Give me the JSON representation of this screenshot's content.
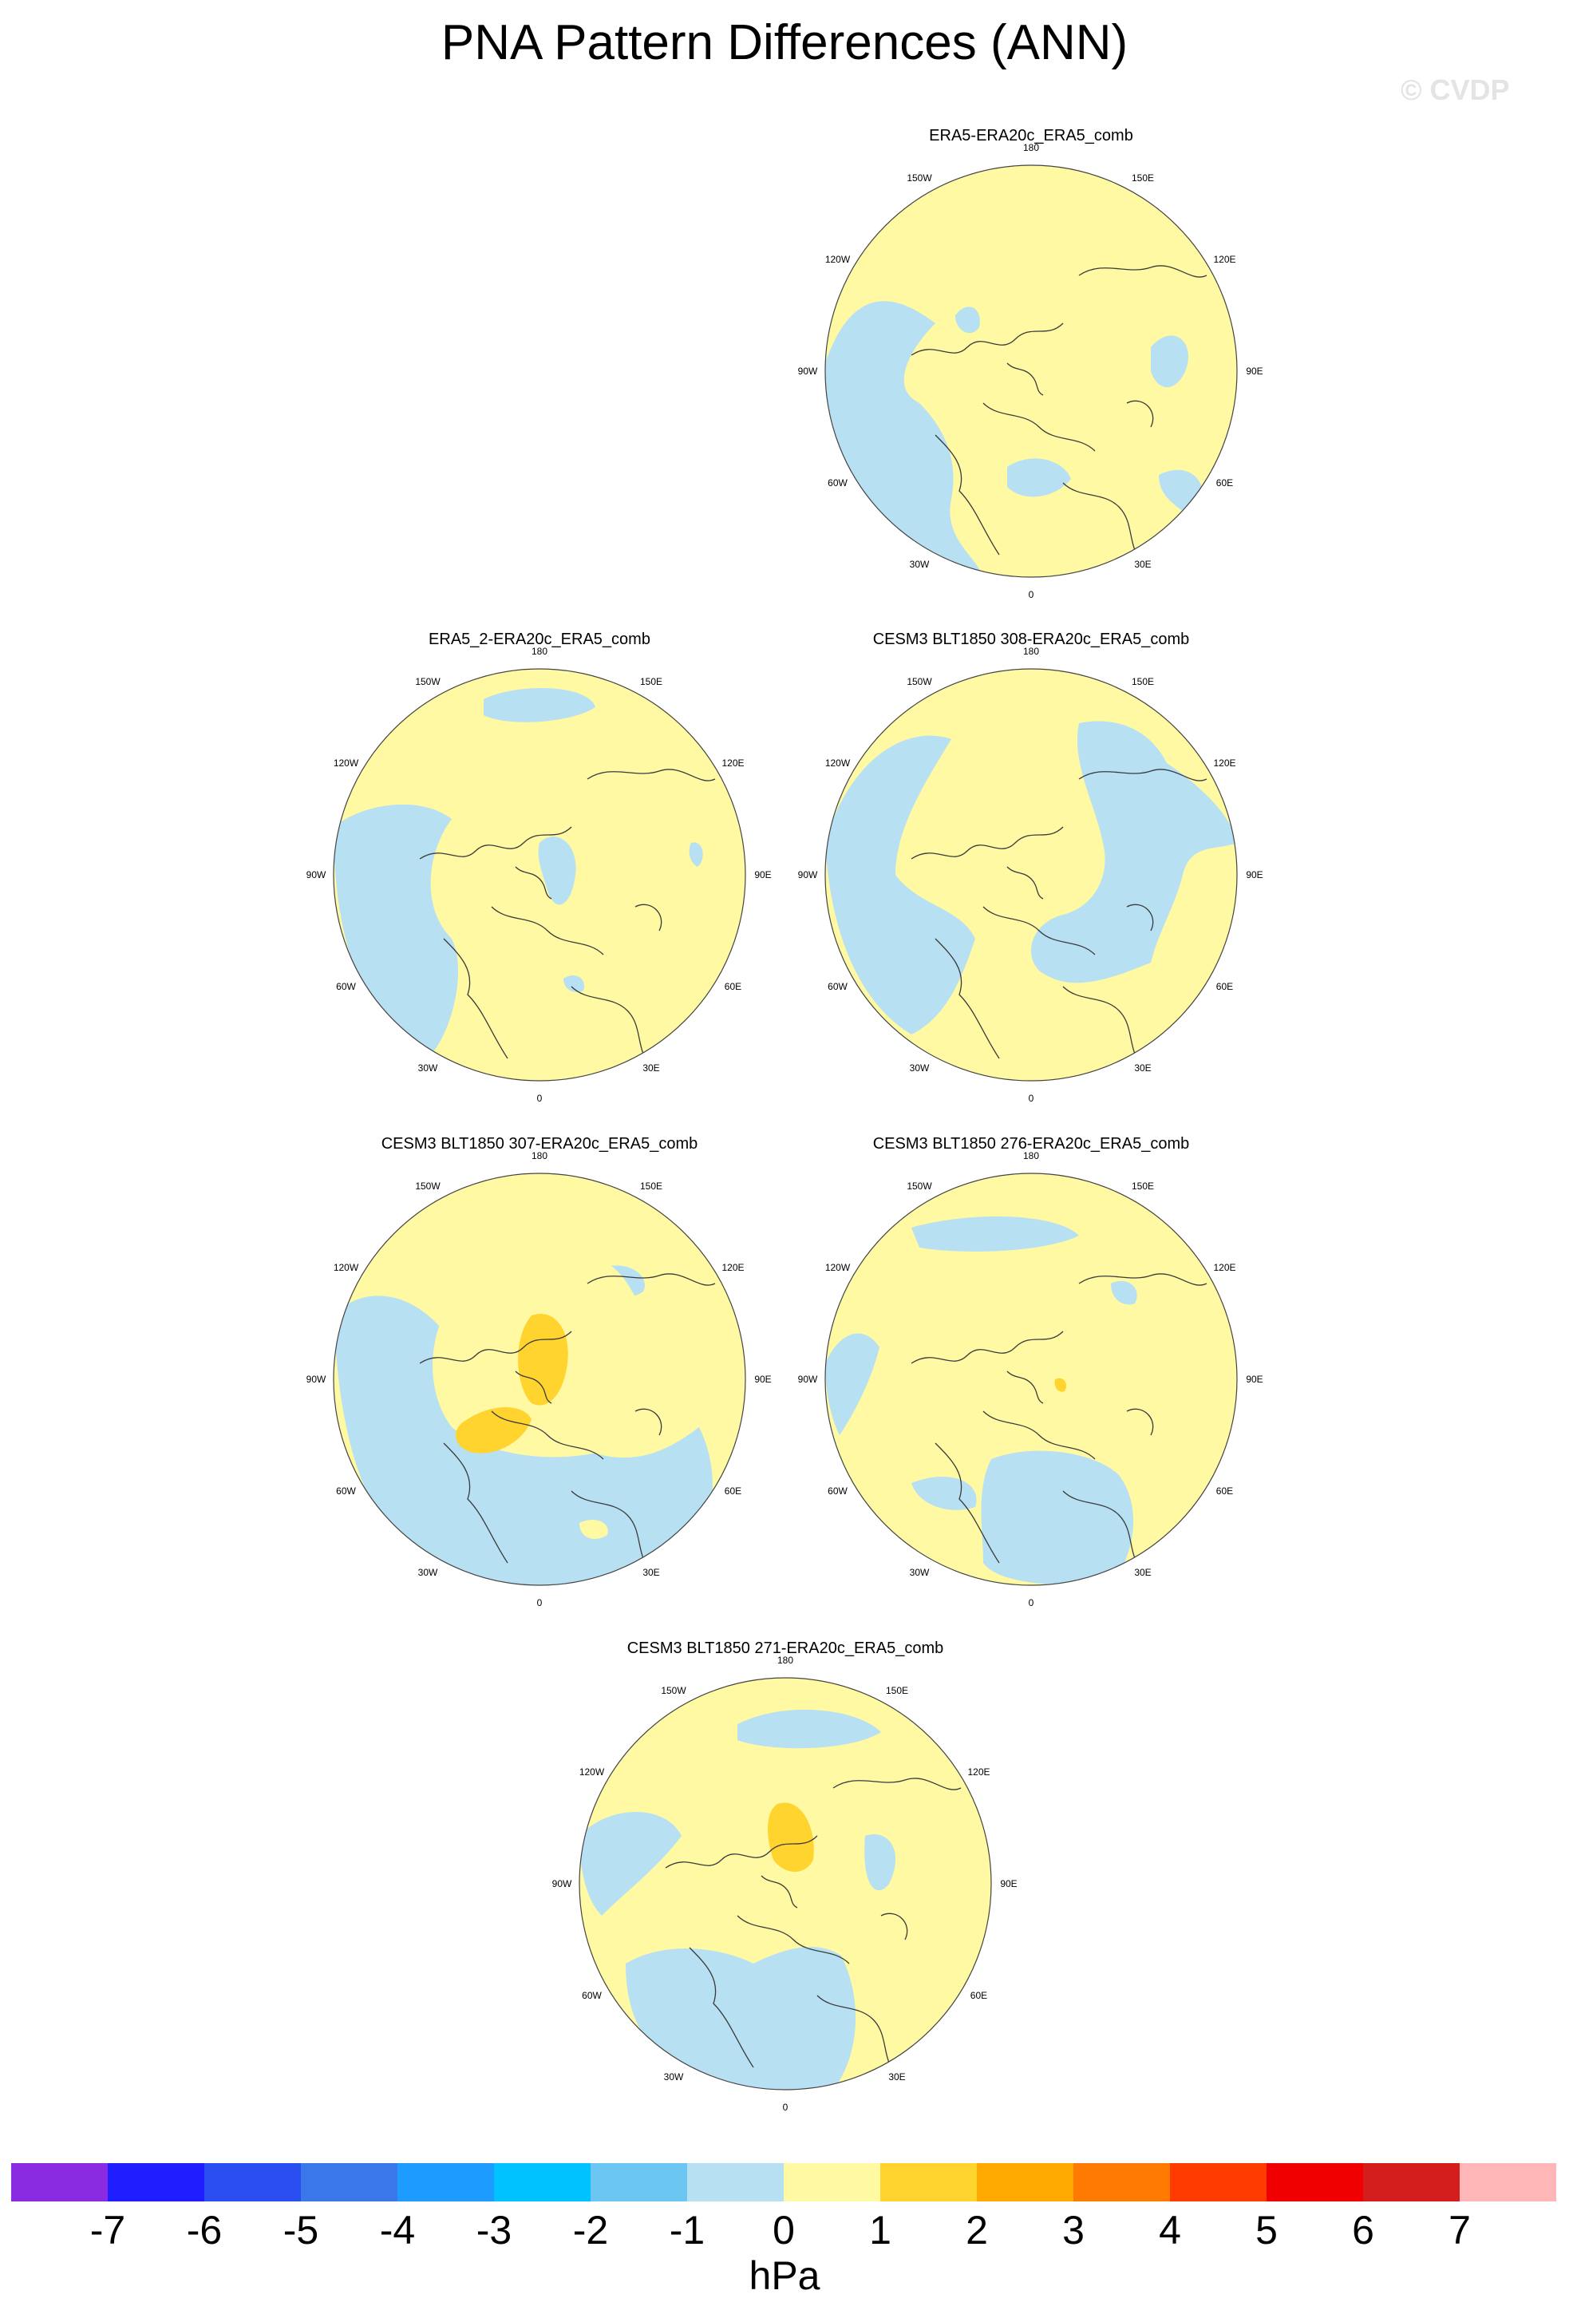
{
  "title": "PNA Pattern Differences (ANN)",
  "watermark": "© CVDP",
  "units": "hPa",
  "colors": {
    "land_outline": "#3a3a3a",
    "zero_to_one": "#fff9a3",
    "minus_one_to_zero": "#b7e0f3",
    "one_to_two": "#ffd42e"
  },
  "longitude_labels": [
    "180",
    "150E",
    "120E",
    "90E",
    "60E",
    "30E",
    "0",
    "30W",
    "60W",
    "90W",
    "120W",
    "150W"
  ],
  "panels": [
    {
      "id": "era5",
      "title": "ERA5-ERA20c_ERA5_comb",
      "pos": "row1-right"
    },
    {
      "id": "era5-2",
      "title": "ERA5_2-ERA20c_ERA5_comb",
      "pos": "row2-left"
    },
    {
      "id": "cesm-308",
      "title": "CESM3 BLT1850 308-ERA20c_ERA5_comb",
      "pos": "row2-right"
    },
    {
      "id": "cesm-307",
      "title": "CESM3 BLT1850 307-ERA20c_ERA5_comb",
      "pos": "row3-left"
    },
    {
      "id": "cesm-276",
      "title": "CESM3 BLT1850 276-ERA20c_ERA5_comb",
      "pos": "row3-right"
    },
    {
      "id": "cesm-271",
      "title": "CESM3 BLT1850 271-ERA20c_ERA5_comb",
      "pos": "row4-center"
    }
  ],
  "colorbar": {
    "levels": [
      "-7",
      "-6",
      "-5",
      "-4",
      "-3",
      "-2",
      "-1",
      "0",
      "1",
      "2",
      "3",
      "4",
      "5",
      "6",
      "7"
    ],
    "colors": [
      "#8a2be2",
      "#1e1eff",
      "#2b4ef0",
      "#3a78ea",
      "#1e9bff",
      "#00c2ff",
      "#6cc6f2",
      "#b7e0f3",
      "#fff9a3",
      "#ffd42e",
      "#ffaa00",
      "#ff7a00",
      "#ff3c00",
      "#f00000",
      "#d41e1e",
      "#ffb6b6"
    ]
  }
}
